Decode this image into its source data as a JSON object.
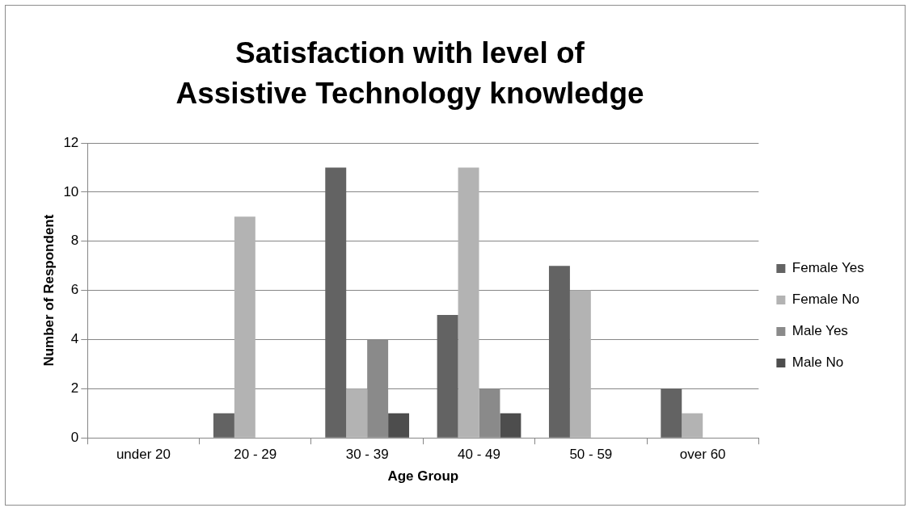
{
  "chart_data": {
    "type": "bar",
    "title": "Satisfaction with level of Assistive Technology knowledge",
    "xlabel": "Age Group",
    "ylabel": "Number of Respondent",
    "categories": [
      "under 20",
      "20 - 29",
      "30 - 39",
      "40 - 49",
      "50 - 59",
      "over 60"
    ],
    "series": [
      {
        "name": "Female Yes",
        "color": "#636363",
        "values": [
          0,
          1,
          11,
          5,
          7,
          2
        ]
      },
      {
        "name": "Female No",
        "color": "#b3b3b3",
        "values": [
          0,
          9,
          2,
          11,
          6,
          1
        ]
      },
      {
        "name": "Male Yes",
        "color": "#8a8a8a",
        "values": [
          0,
          0,
          4,
          2,
          0,
          0
        ]
      },
      {
        "name": "Male No",
        "color": "#4d4d4d",
        "values": [
          0,
          0,
          1,
          1,
          0,
          0
        ]
      }
    ],
    "ylim": [
      0,
      12
    ],
    "yticks": [
      0,
      2,
      4,
      6,
      8,
      10,
      12
    ],
    "grid": "y",
    "legend": "right"
  }
}
